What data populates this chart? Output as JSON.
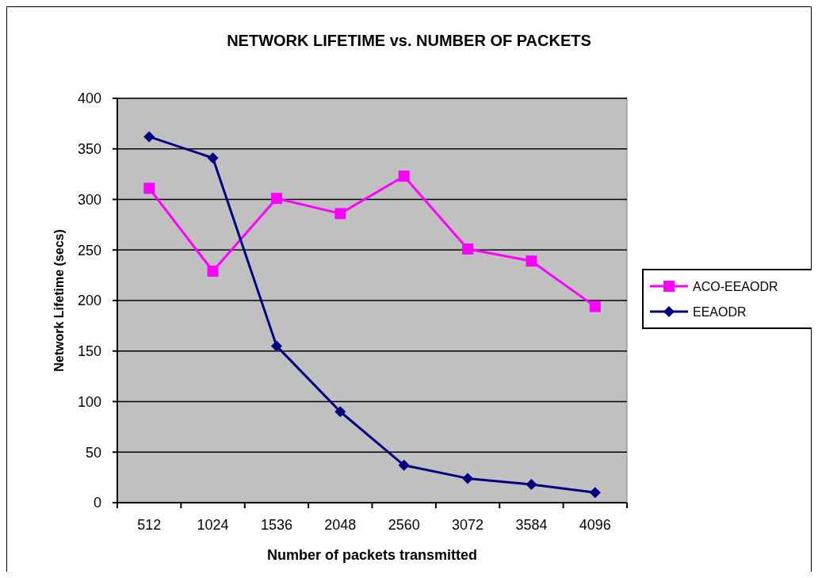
{
  "chart_data": {
    "type": "line",
    "title": "NETWORK LIFETIME vs. NUMBER  OF PACKETS",
    "xlabel": "Number of packets transmitted",
    "ylabel": "Network Lifetime (secs)",
    "categories": [
      "512",
      "1024",
      "1536",
      "2048",
      "2560",
      "3072",
      "3584",
      "4096"
    ],
    "series": [
      {
        "name": "ACO-EEAODR",
        "color": "#ff00ff",
        "marker": "square",
        "values": [
          311,
          229,
          301,
          286,
          323,
          251,
          239,
          194
        ]
      },
      {
        "name": "EEAODR",
        "color": "#000080",
        "marker": "diamond",
        "values": [
          362,
          341,
          155,
          90,
          37,
          24,
          18,
          10
        ]
      }
    ],
    "ylim": [
      0,
      400
    ],
    "yticks": [
      0,
      50,
      100,
      150,
      200,
      250,
      300,
      350,
      400
    ],
    "grid": "y",
    "legend": "right"
  }
}
